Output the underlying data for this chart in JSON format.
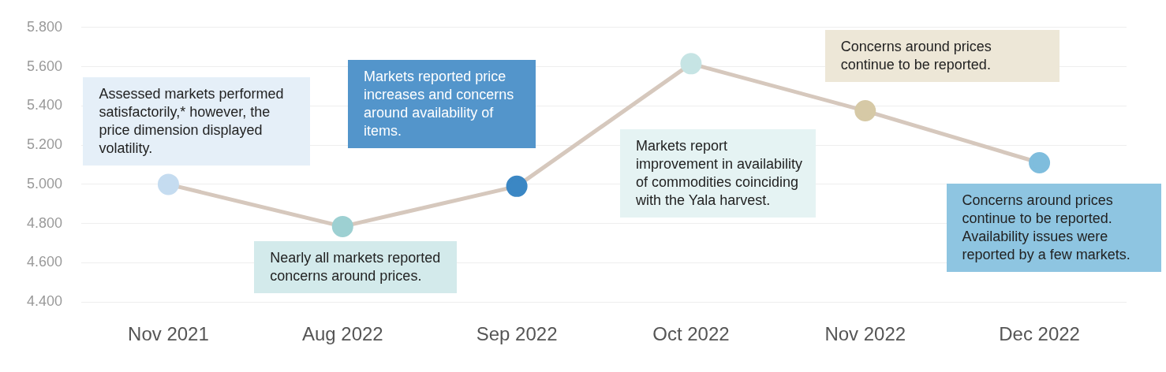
{
  "chart_data": {
    "type": "line",
    "categories": [
      "Nov 2021",
      "Aug 2022",
      "Sep 2022",
      "Oct 2022",
      "Nov 2022",
      "Dec 2022"
    ],
    "series": [
      {
        "color": "#d6c8bd",
        "colors": [
          "#c5dcf0",
          "#9dd0d2",
          "#3b87c4",
          "#c6e4e4",
          "#d6c9a6",
          "#7fbddd"
        ],
        "values": [
          5000,
          4785,
          4990,
          5615,
          5375,
          5110
        ]
      }
    ],
    "ylim": [
      4400,
      5800
    ],
    "yticks": [
      {
        "value": 4400,
        "label": "4.400"
      },
      {
        "value": 4600,
        "label": "4.600"
      },
      {
        "value": 4800,
        "label": "4.800"
      },
      {
        "value": 5000,
        "label": "5.000"
      },
      {
        "value": 5200,
        "label": "5.200"
      },
      {
        "value": 5400,
        "label": "5.400"
      },
      {
        "value": 5600,
        "label": "5.600"
      },
      {
        "value": 5800,
        "label": "5.800"
      }
    ],
    "grid": "y",
    "legend": false,
    "marker": "circle",
    "line_style": "solid",
    "annotations": [
      "Assessed markets performed satisfactorily,* however, the price dimension displayed volatility.",
      "Nearly all markets reported concerns around prices.",
      "Markets reported price increases and concerns around availability of items.",
      "Markets report improvement in availability of commodities coinciding with the Yala harvest.",
      "Concerns around prices continue to be reported.",
      "Concerns around prices continue to be reported. Availability issues were reported by a few markets."
    ]
  }
}
